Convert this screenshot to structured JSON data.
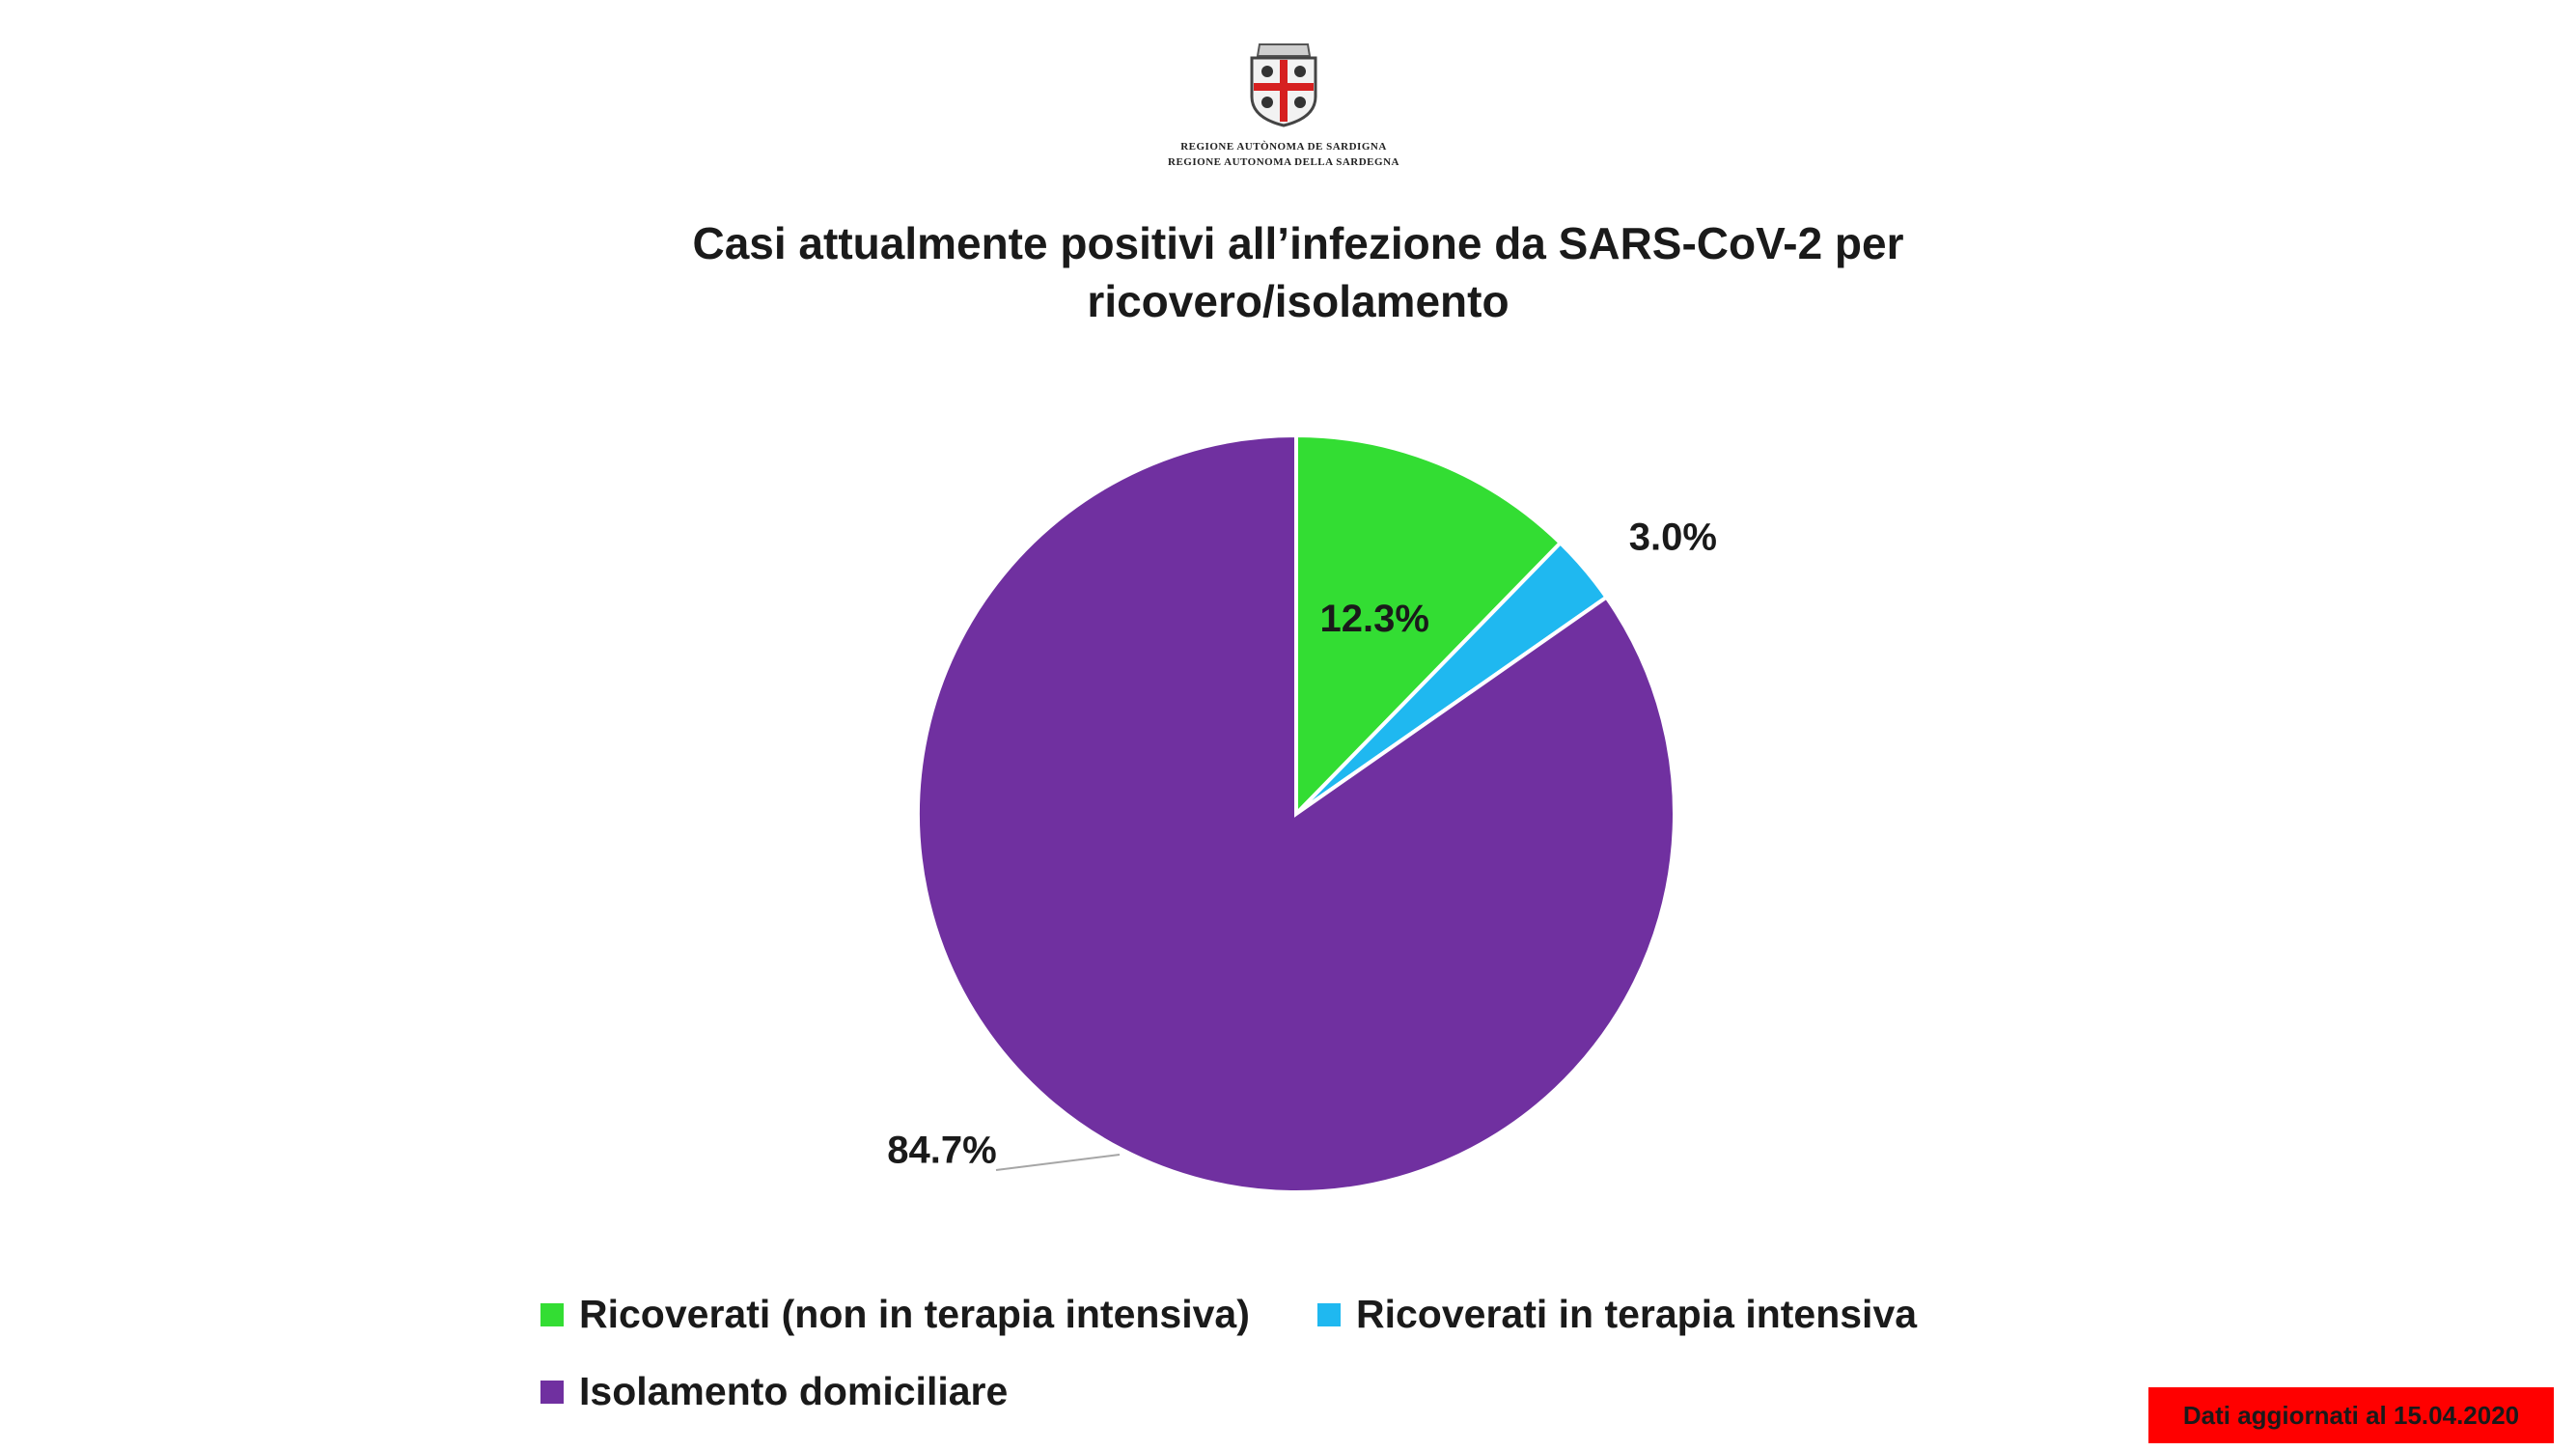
{
  "header": {
    "logo_icon": "sardinia-coat-of-arms-icon",
    "logo_line1": "Regione Autònoma de Sardigna",
    "logo_line2": "Regione Autonoma della Sardegna"
  },
  "chart_data": {
    "type": "pie",
    "title": "Casi attualmente positivi all’infezione da SARS-CoV-2 per ricovero/isolamento",
    "title_lines": [
      "Casi attualmente positivi all’infezione da SARS-CoV-2 per",
      "ricovero/isolamento"
    ],
    "categories": [
      "Ricoverati (non in terapia intensiva)",
      "Ricoverati in terapia intensiva",
      "Isolamento domiciliare"
    ],
    "values": [
      12.3,
      3.0,
      84.7
    ],
    "data_labels": [
      "12.3%",
      "3.0%",
      "84.7%"
    ],
    "colors": [
      "#33dd33",
      "#1fb8f0",
      "#7030a0"
    ],
    "legend_position": "bottom",
    "start_angle": "12 o'clock, clockwise"
  },
  "footer": {
    "update_badge": "Dati aggiornati al 15.04.2020",
    "badge_color": "#ff0000"
  }
}
